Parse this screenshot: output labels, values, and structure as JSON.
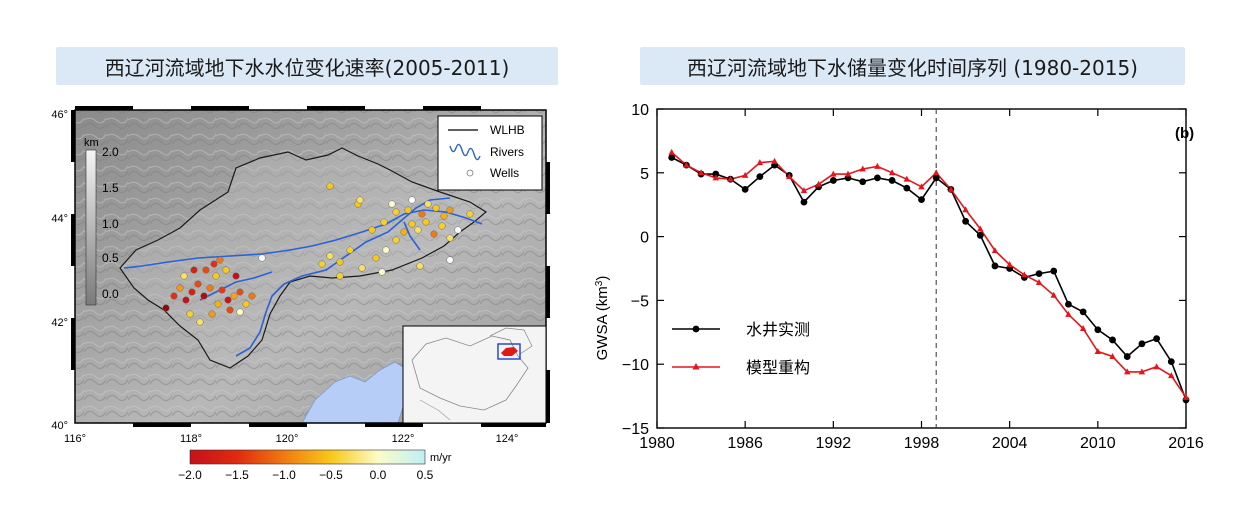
{
  "left_panel": {
    "title": "西辽河流域地下水水位变化速率(2005-2011)",
    "map": {
      "lat_ticks": [
        "46°",
        "44°",
        "42°",
        "40°"
      ],
      "lon_ticks": [
        "116°",
        "118°",
        "120°",
        "122°",
        "124°"
      ],
      "elevation_bar": {
        "unit": "km",
        "ticks": [
          "2.0",
          "1.5",
          "1.0",
          "0.5",
          "0.0"
        ]
      },
      "legend": {
        "items": [
          {
            "label": "WLHB",
            "icon": "black-line-icon"
          },
          {
            "label": "Rivers",
            "icon": "blue-river-icon"
          },
          {
            "label": "Wells",
            "icon": "circle-icon"
          }
        ]
      },
      "colorbar": {
        "unit": "m/yr",
        "ticks": [
          "−2.0",
          "−1.5",
          "−1.0",
          "−0.5",
          "0.0",
          "0.5"
        ],
        "range": [
          -2.0,
          0.5
        ]
      }
    }
  },
  "right_panel": {
    "title": "西辽河流域地下水储量变化时间序列 (1980-2015)",
    "panel_label": "(b)",
    "y_tick_labels": [
      "10",
      "5",
      "0",
      "−5",
      "−10",
      "−15"
    ],
    "x_tick_labels": [
      "1980",
      "1986",
      "1992",
      "1998",
      "2004",
      "2010",
      "2016"
    ]
  },
  "chart_data": {
    "type": "line",
    "title": "西辽河流域地下水储量变化时间序列 (1980-2015)",
    "xlabel": "",
    "ylabel": "GWSA (km³)",
    "xlim": [
      1980,
      2016
    ],
    "ylim": [
      -15,
      10
    ],
    "x_ticks": [
      1980,
      1986,
      1992,
      1998,
      2004,
      2010,
      2016
    ],
    "y_ticks": [
      10,
      5,
      0,
      -5,
      -10,
      -15
    ],
    "vertical_reference_line": 1999,
    "legend_placement": "lower-left",
    "series": [
      {
        "name": "水井实测",
        "color": "#000000",
        "marker": "circle",
        "x": [
          1981,
          1982,
          1983,
          1984,
          1985,
          1986,
          1987,
          1988,
          1989,
          1990,
          1991,
          1992,
          1993,
          1994,
          1995,
          1996,
          1997,
          1998,
          1999,
          2000,
          2001,
          2002,
          2003,
          2004,
          2005,
          2006,
          2007,
          2008,
          2009,
          2010,
          2011,
          2012,
          2013,
          2014,
          2015,
          2016
        ],
        "values": [
          6.2,
          5.6,
          4.9,
          4.9,
          4.5,
          3.7,
          4.7,
          5.6,
          4.8,
          2.7,
          3.9,
          4.4,
          4.6,
          4.3,
          4.6,
          4.4,
          3.8,
          2.9,
          4.6,
          3.7,
          1.2,
          0.1,
          -2.3,
          -2.5,
          -3.2,
          -2.9,
          -2.7,
          -5.3,
          -5.9,
          -7.3,
          -8.1,
          -9.4,
          -8.4,
          -8.0,
          -9.8,
          -12.8
        ]
      },
      {
        "name": "模型重构",
        "color": "#e8141c",
        "marker": "triangle",
        "x": [
          1981,
          1982,
          1983,
          1984,
          1985,
          1986,
          1987,
          1988,
          1989,
          1990,
          1991,
          1992,
          1993,
          1994,
          1995,
          1996,
          1997,
          1998,
          1999,
          2000,
          2001,
          2002,
          2003,
          2004,
          2005,
          2006,
          2007,
          2008,
          2009,
          2010,
          2011,
          2012,
          2013,
          2014,
          2015,
          2016
        ],
        "values": [
          6.6,
          5.6,
          5.0,
          4.6,
          4.5,
          4.8,
          5.8,
          5.9,
          4.7,
          3.6,
          4.1,
          4.9,
          4.9,
          5.3,
          5.5,
          5.0,
          4.5,
          3.9,
          5.0,
          3.7,
          2.1,
          0.6,
          -1.1,
          -2.2,
          -3.0,
          -3.6,
          -4.6,
          -6.1,
          -7.2,
          -9.0,
          -9.4,
          -10.6,
          -10.6,
          -10.2,
          -10.9,
          -12.6
        ]
      }
    ]
  }
}
